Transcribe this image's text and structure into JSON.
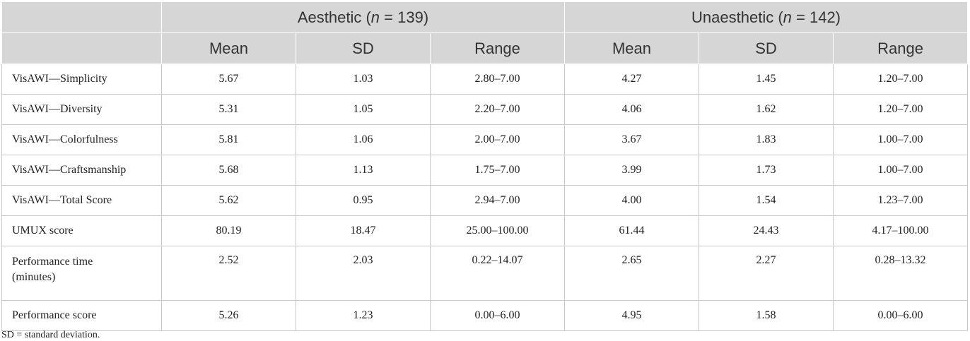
{
  "table": {
    "groups": [
      [
        "Aesthetic (",
        "n",
        " = 139)"
      ],
      [
        "Unaesthetic (",
        "n",
        " = 142)"
      ]
    ],
    "subheaders": [
      "Mean",
      "SD",
      "Range",
      "Mean",
      "SD",
      "Range"
    ],
    "rows": [
      [
        "VisAWI—Simplicity",
        "5.67",
        "1.03",
        "2.80–7.00",
        "4.27",
        "1.45",
        "1.20–7.00"
      ],
      [
        "VisAWI—Diversity",
        "5.31",
        "1.05",
        "2.20–7.00",
        "4.06",
        "1.62",
        "1.20–7.00"
      ],
      [
        "VisAWI—Colorfulness",
        "5.81",
        "1.06",
        "2.00–7.00",
        "3.67",
        "1.83",
        "1.00–7.00"
      ],
      [
        "VisAWI—Craftsmanship",
        "5.68",
        "1.13",
        "1.75–7.00",
        "3.99",
        "1.73",
        "1.00–7.00"
      ],
      [
        "VisAWI—Total Score",
        "5.62",
        "0.95",
        "2.94–7.00",
        "4.00",
        "1.54",
        "1.23–7.00"
      ],
      [
        "UMUX score",
        "80.19",
        "18.47",
        "25.00–100.00",
        "61.44",
        "24.43",
        "4.17–100.00"
      ],
      [
        "Performance time (minutes)",
        "2.52",
        "2.03",
        "0.22–14.07",
        "2.65",
        "2.27",
        "0.28–13.32"
      ],
      [
        "Performance score",
        "5.26",
        "1.23",
        "0.00–6.00",
        "4.95",
        "1.58",
        "0.00–6.00"
      ]
    ]
  },
  "footnote": "SD = standard deviation."
}
